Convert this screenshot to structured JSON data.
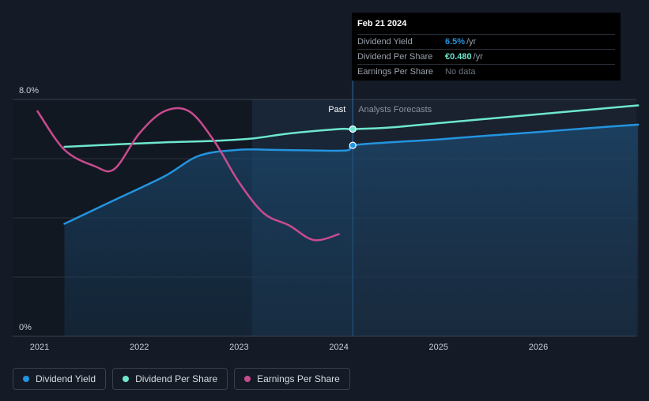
{
  "colors": {
    "dividend_yield": "#2394df",
    "dividend_per_share": "#6ee7cf",
    "earnings_per_share": "#c84b8f"
  },
  "tooltip": {
    "date": "Feb 21 2024",
    "rows": [
      {
        "label": "Dividend Yield",
        "value": "6.5%",
        "unit": "/yr"
      },
      {
        "label": "Dividend Per Share",
        "value": "€0.480",
        "unit": "/yr"
      },
      {
        "label": "Earnings Per Share",
        "value": "No data",
        "unit": ""
      }
    ]
  },
  "regions": {
    "past_label": "Past",
    "forecast_label": "Analysts Forecasts"
  },
  "legend": [
    {
      "label": "Dividend Yield"
    },
    {
      "label": "Dividend Per Share"
    },
    {
      "label": "Earnings Per Share"
    }
  ],
  "chart_data": {
    "type": "line",
    "title": "",
    "xlabel": "",
    "ylabel": "",
    "x_ticks": [
      "2021",
      "2022",
      "2023",
      "2024",
      "2025",
      "2026"
    ],
    "xlim": [
      2020.75,
      2027.0
    ],
    "y_ticks": [
      "0%",
      "8.0%"
    ],
    "ylim": [
      0,
      8.0
    ],
    "grid": true,
    "past_start": 2021.25,
    "shade_start": 2023.13,
    "forecast_start": 2024.14,
    "series": [
      {
        "name": "Dividend Yield",
        "key": "dividend_yield",
        "x": [
          2021.25,
          2021.75,
          2022.25,
          2022.6,
          2023.0,
          2023.3,
          2023.7,
          2024.08,
          2024.14,
          2024.5,
          2025.0,
          2025.5,
          2026.0,
          2026.5,
          2027.0
        ],
        "y": [
          3.8,
          4.6,
          5.4,
          6.1,
          6.3,
          6.3,
          6.28,
          6.28,
          6.45,
          6.55,
          6.65,
          6.78,
          6.9,
          7.03,
          7.15
        ]
      },
      {
        "name": "Dividend Per Share",
        "key": "dividend_per_share",
        "x": [
          2021.25,
          2021.75,
          2022.25,
          2022.75,
          2023.13,
          2023.5,
          2024.0,
          2024.14,
          2024.5,
          2025.0,
          2025.5,
          2026.0,
          2026.5,
          2027.0
        ],
        "y": [
          6.4,
          6.48,
          6.55,
          6.6,
          6.68,
          6.85,
          7.0,
          7.0,
          7.05,
          7.2,
          7.35,
          7.5,
          7.65,
          7.8
        ]
      },
      {
        "name": "Earnings Per Share",
        "key": "earnings_per_share",
        "x": [
          2020.98,
          2021.25,
          2021.55,
          2021.75,
          2022.0,
          2022.25,
          2022.5,
          2022.75,
          2023.0,
          2023.25,
          2023.5,
          2023.75,
          2024.0
        ],
        "y": [
          7.6,
          6.3,
          5.75,
          5.65,
          6.85,
          7.6,
          7.6,
          6.6,
          5.2,
          4.15,
          3.75,
          3.25,
          3.45
        ]
      }
    ],
    "markers": [
      {
        "series": "dividend_per_share",
        "x": 2024.14,
        "y": 7.0
      },
      {
        "series": "dividend_yield",
        "x": 2024.14,
        "y": 6.45
      }
    ]
  }
}
